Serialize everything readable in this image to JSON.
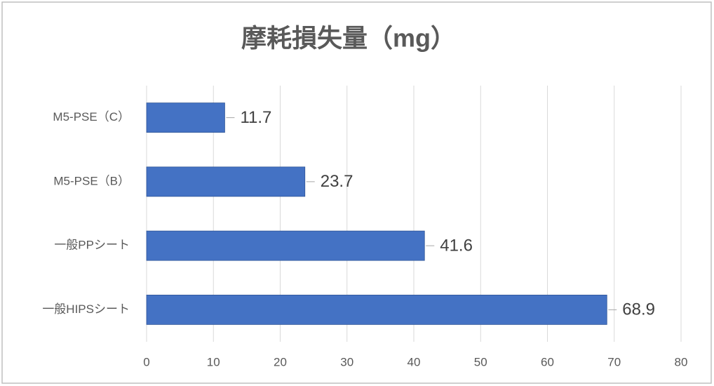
{
  "chart_data": {
    "type": "bar",
    "orientation": "horizontal",
    "title": "摩耗損失量（mg）",
    "categories": [
      "M5-PSE（C）",
      "M5-PSE（B）",
      "一般PPシート",
      "一般HIPSシート"
    ],
    "values": [
      11.7,
      23.7,
      41.6,
      68.9
    ],
    "color": "#4472c4",
    "xlim": [
      0,
      80
    ],
    "xticks": [
      0,
      10,
      20,
      30,
      40,
      50,
      60,
      70,
      80
    ],
    "grid": true
  }
}
